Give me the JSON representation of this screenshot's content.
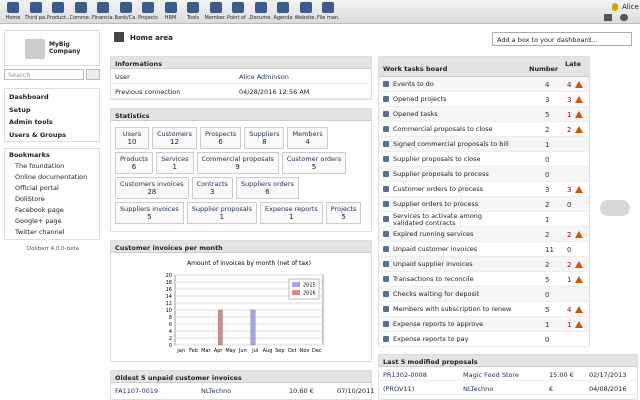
{
  "topmenu": [
    "Home",
    "Third pa...",
    "Product...",
    "Comme...",
    "Financia...",
    "Bank/Ca...",
    "Projects",
    "HRM",
    "Tools",
    "Member...",
    "Point of ...",
    "Docume...",
    "Agenda",
    "Website...",
    "File man..."
  ],
  "user_name": "Alice",
  "logo": "MyBig Company",
  "search_placeholder": "Search",
  "left_menu": [
    "Dashboard",
    "Setup",
    "Admin tools",
    "Users & Groups"
  ],
  "bookmarks": {
    "title": "Bookmarks",
    "items": [
      "The foundation",
      "Online documentation",
      "Official portal",
      "DoliStore",
      "Facebook page",
      "Google+ page",
      "Twitter channel"
    ]
  },
  "version": "Dolibarr 4.0.0-beta",
  "header": {
    "title": "Home area",
    "box_select": "Add a box to your dashboard..."
  },
  "informations": {
    "title": "Informations",
    "rows": [
      [
        "User",
        "Alice Adminson"
      ],
      [
        "Previous connection",
        "04/28/2016 12:56 AM"
      ]
    ]
  },
  "statistics": {
    "title": "Statistics",
    "items": [
      [
        "Users",
        10
      ],
      [
        "Customers",
        12
      ],
      [
        "Prospects",
        6
      ],
      [
        "Suppliers",
        8
      ],
      [
        "Members",
        4
      ],
      [
        "Products",
        6
      ],
      [
        "Services",
        1
      ],
      [
        "Commercial proposals",
        9
      ],
      [
        "Customer orders",
        5
      ],
      [
        "Customers invoices",
        28
      ],
      [
        "Contracts",
        3
      ],
      [
        "Suppliers orders",
        6
      ],
      [
        "Suppliers invoices",
        5
      ],
      [
        "Supplier proposals",
        1
      ],
      [
        "Expense reports",
        1
      ],
      [
        "Projects",
        5
      ]
    ]
  },
  "invoices_chart": {
    "title": "Customer invoices per month",
    "type": "bar",
    "subtitle": "Amount of invoices by month (net of tax)",
    "categories": [
      "Jan",
      "Feb",
      "Mar",
      "Apr",
      "May",
      "Jun",
      "Jul",
      "Aug",
      "Sep",
      "Oct",
      "Nov",
      "Dec"
    ],
    "series": [
      {
        "name": "2015",
        "color": "#a4a4e8",
        "values": [
          0,
          0,
          0,
          0,
          0,
          0,
          10,
          0,
          0,
          0,
          0,
          0
        ]
      },
      {
        "name": "2016",
        "color": "#d88a8a",
        "values": [
          0,
          0,
          0,
          10,
          0,
          0,
          0,
          0,
          0,
          0,
          0,
          0
        ]
      }
    ],
    "ylim": [
      0,
      20
    ],
    "yticks": [
      0,
      2,
      4,
      6,
      8,
      10,
      12,
      14,
      16,
      18,
      20
    ],
    "grid": true
  },
  "unpaid": {
    "title": "Oldest 5 unpaid customer invoices",
    "rows": [
      [
        "FA1107-0019",
        "NLTechno",
        "10.60 €",
        "07/10/2011"
      ]
    ]
  },
  "work": {
    "title": "Work tasks board",
    "col_number": "Number",
    "col_late": "Late",
    "rows": [
      [
        "Events to do",
        4,
        4
      ],
      [
        "Opened projects",
        3,
        3
      ],
      [
        "Opened tasks",
        5,
        1
      ],
      [
        "Commercial proposals to close",
        2,
        2
      ],
      [
        "Signed commercial proposals to bill",
        1,
        null
      ],
      [
        "Supplier proposals to close",
        0,
        null
      ],
      [
        "Supplier proposals to process",
        0,
        null
      ],
      [
        "Customer orders to process",
        3,
        3
      ],
      [
        "Supplier orders to process",
        2,
        0
      ],
      [
        "Services to activate among validated contracts",
        1,
        null
      ],
      [
        "Expired running services",
        2,
        2
      ],
      [
        "Unpaid customer invoices",
        11,
        0
      ],
      [
        "Unpaid supplier invoices",
        2,
        2
      ],
      [
        "Transactions to reconcile",
        5,
        1
      ],
      [
        "Checks waiting for deposit",
        0,
        null
      ],
      [
        "Members with subscription to renew",
        5,
        4
      ],
      [
        "Expense reports to approve",
        1,
        1
      ],
      [
        "Expense reports to pay",
        0,
        null
      ]
    ]
  },
  "proposals": {
    "title": "Last 5 modified proposals",
    "rows": [
      [
        "PR1302-0008",
        "Magic Food Store",
        "15.00 €",
        "02/17/2013"
      ],
      [
        "(PROV11)",
        "NLTechno",
        "€",
        "04/08/2016"
      ]
    ]
  }
}
